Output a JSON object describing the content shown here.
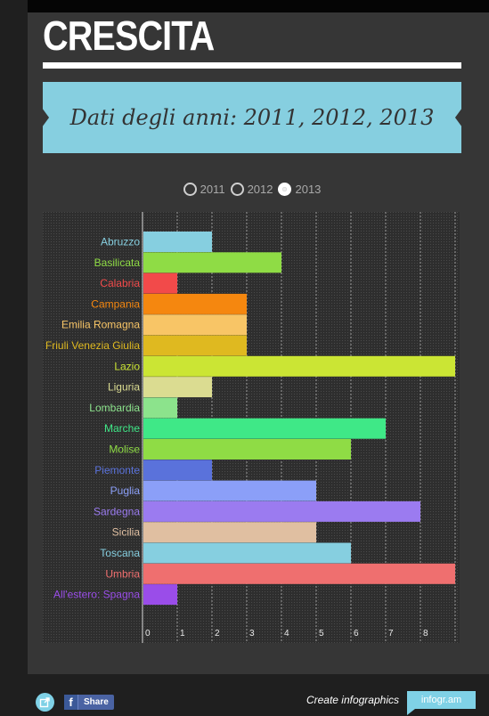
{
  "header": {
    "title": "CRESCITA",
    "subtitle": "Dati degli anni: 2011, 2012, 2013"
  },
  "year_selector": {
    "options": [
      "2011",
      "2012",
      "2013"
    ],
    "selected": "2013"
  },
  "chart_data": {
    "type": "bar",
    "orientation": "horizontal",
    "title": "",
    "xlabel": "",
    "ylabel": "",
    "xlim": [
      0,
      9
    ],
    "x_ticks": [
      "0",
      "1",
      "2",
      "3",
      "4",
      "5",
      "6",
      "7",
      "8"
    ],
    "grid": true,
    "legend": false,
    "categories": [
      "Abruzzo",
      "Basilicata",
      "Calabria",
      "Campania",
      "Emilia Romagna",
      "Friuli Venezia Giulia",
      "Lazio",
      "Liguria",
      "Lombardia",
      "Marche",
      "Molise",
      "Piemonte",
      "Puglia",
      "Sardegna",
      "Sicilia",
      "Toscana",
      "Umbria",
      "All'estero: Spagna"
    ],
    "values": [
      2,
      4,
      1,
      3,
      3,
      3,
      9,
      2,
      1,
      7,
      6,
      2,
      5,
      8,
      5,
      6,
      9,
      1
    ],
    "colors": [
      "#86cfe0",
      "#8fdc45",
      "#f24a4a",
      "#f5870f",
      "#f8c566",
      "#dfb920",
      "#cbe534",
      "#dbdc91",
      "#8ce38c",
      "#3fe887",
      "#8fdc45",
      "#5a72db",
      "#8b9ff8",
      "#9b7bf0",
      "#e0bfa1",
      "#86cfe0",
      "#ef6f6f",
      "#9a4de9"
    ]
  },
  "footer": {
    "share_label": "Share",
    "create_label": "Create infographics",
    "brand_label": "infogr.am"
  }
}
